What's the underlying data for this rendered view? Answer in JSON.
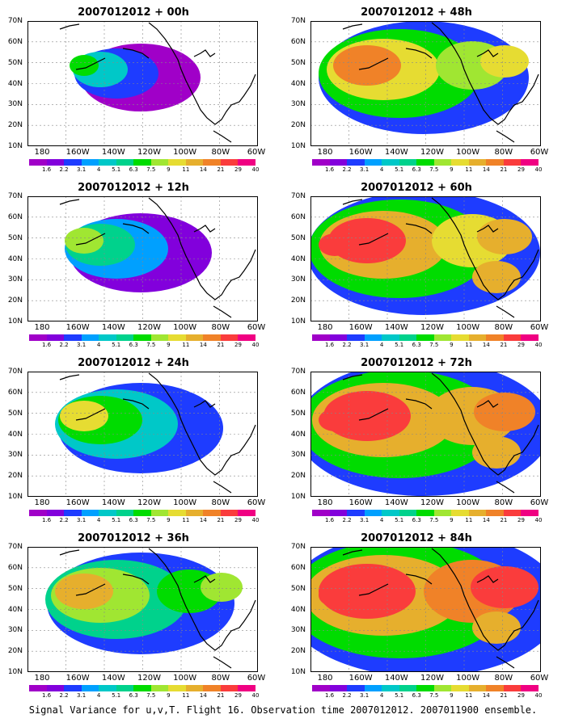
{
  "panels": [
    {
      "title": "2007012012 + 00h",
      "level": 1
    },
    {
      "title": "2007012012 + 48h",
      "level": 5
    },
    {
      "title": "2007012012 + 12h",
      "level": 2
    },
    {
      "title": "2007012012 + 60h",
      "level": 6
    },
    {
      "title": "2007012012 + 24h",
      "level": 3
    },
    {
      "title": "2007012012 + 72h",
      "level": 7
    },
    {
      "title": "2007012012 + 36h",
      "level": 4
    },
    {
      "title": "2007012012 + 84h",
      "level": 8
    }
  ],
  "lat_labels": [
    "70N",
    "60N",
    "50N",
    "40N",
    "30N",
    "20N",
    "10N"
  ],
  "lon_labels": [
    "180",
    "160W",
    "140W",
    "120W",
    "100W",
    "80W",
    "60W"
  ],
  "colorbar": {
    "labels": [
      "1.6",
      "2.2",
      "3.1",
      "4",
      "5.1",
      "6.3",
      "7.5",
      "9",
      "11",
      "14",
      "21",
      "29",
      "40"
    ],
    "colors": [
      "#a000c8",
      "#8200dc",
      "#1e3cff",
      "#00a0ff",
      "#00c8c8",
      "#00d28c",
      "#00dc00",
      "#a0e632",
      "#e6dc32",
      "#e6af2d",
      "#f08228",
      "#fa3c3c",
      "#f00082"
    ]
  },
  "caption": "Signal Variance for u,v,T. Flight 16. Observation time 2007012012. 2007011900 ensemble."
}
